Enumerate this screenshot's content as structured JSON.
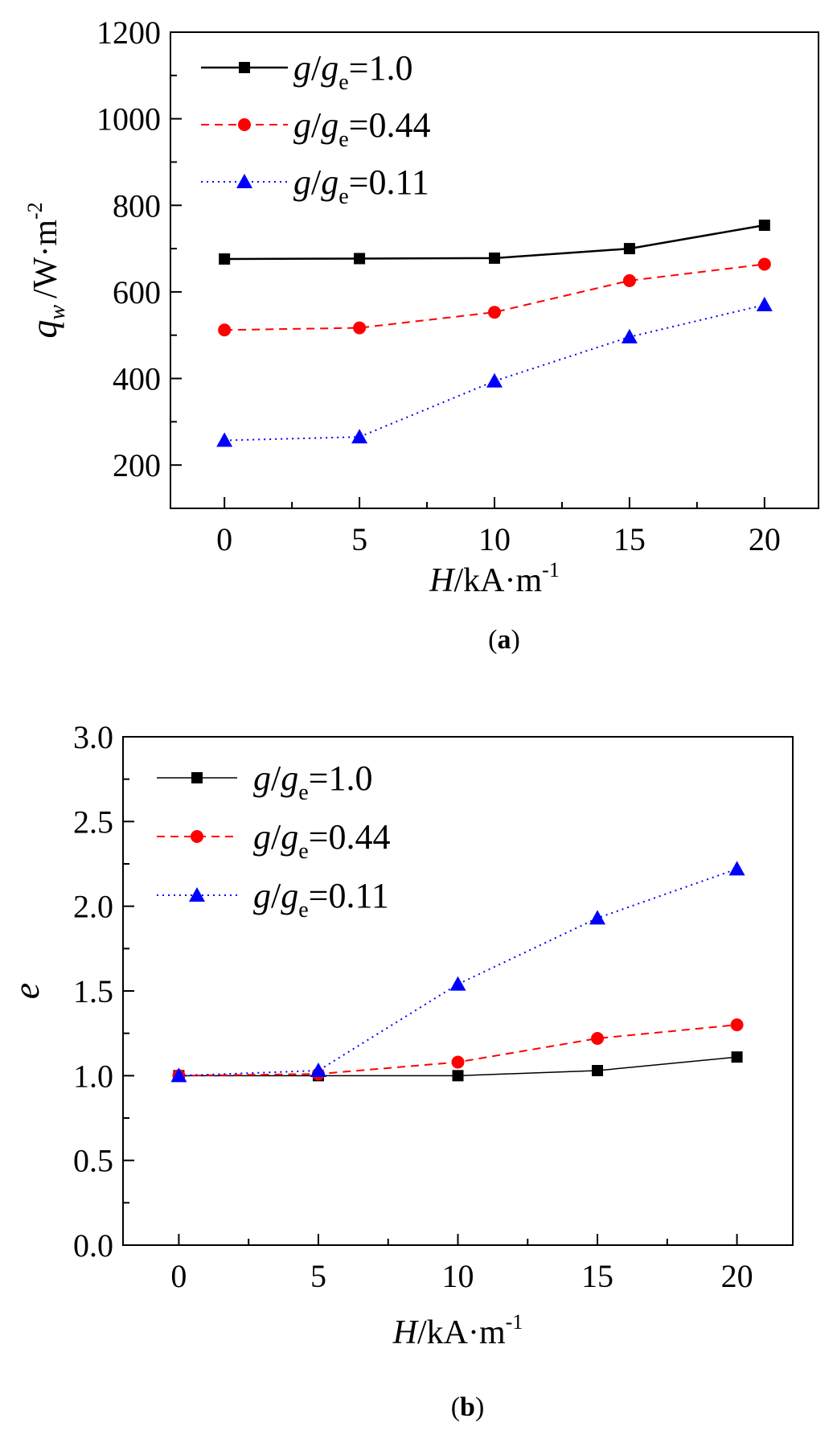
{
  "chart_data": [
    {
      "type": "line",
      "panel": "a",
      "caption_open": "(",
      "caption_letter": "a",
      "caption_close": ")",
      "x": [
        0,
        5,
        10,
        15,
        20
      ],
      "xlim": [
        -2,
        22
      ],
      "xticks": [
        "0",
        "5",
        "10",
        "15",
        "20"
      ],
      "ylim": [
        100,
        1200
      ],
      "yticks": [
        "200",
        "400",
        "600",
        "800",
        "1000",
        "1200"
      ],
      "xlabel": {
        "var": "H",
        "unit": "/kA·m",
        "exp": "-1"
      },
      "ylabel": {
        "var": "q",
        "sub": "w",
        "unit": "/W·m",
        "exp": "-2"
      },
      "series": [
        {
          "name": "g/g_e=1.0",
          "legend": {
            "a": "g",
            "slash": "/",
            "b": "g",
            "sub": "e",
            "val": "=1.0"
          },
          "values": [
            676,
            677,
            678,
            700,
            754
          ],
          "color": "#000000",
          "marker": "square",
          "dash": "solid"
        },
        {
          "name": "g/g_e=0.44",
          "legend": {
            "a": "g",
            "slash": "/",
            "b": "g",
            "sub": "e",
            "val": "=0.44"
          },
          "values": [
            512,
            517,
            553,
            626,
            664
          ],
          "color": "#ff0000",
          "marker": "circle",
          "dash": "dashed"
        },
        {
          "name": "g/g_e=0.11",
          "legend": {
            "a": "g",
            "slash": "/",
            "b": "g",
            "sub": "e",
            "val": "=0.11"
          },
          "values": [
            257,
            265,
            394,
            496,
            570
          ],
          "color": "#0000ff",
          "marker": "triangle",
          "dash": "dotted"
        }
      ]
    },
    {
      "type": "line",
      "panel": "b",
      "caption_open": "(",
      "caption_letter": "b",
      "caption_close": ")",
      "x": [
        0,
        5,
        10,
        15,
        20
      ],
      "xlim": [
        -2,
        22
      ],
      "xticks": [
        "0",
        "5",
        "10",
        "15",
        "20"
      ],
      "ylim": [
        0,
        3
      ],
      "yticks": [
        "0.0",
        "0.5",
        "1.0",
        "1.5",
        "2.0",
        "2.5",
        "3.0"
      ],
      "xlabel": {
        "var": "H",
        "unit": "/kA·m",
        "exp": "-1"
      },
      "ylabel": {
        "var": "e"
      },
      "series": [
        {
          "name": "g/g_e=1.0",
          "legend": {
            "a": "g",
            "slash": "/",
            "b": "g",
            "sub": "e",
            "val": "=1.0"
          },
          "values": [
            1.0,
            1.0,
            1.0,
            1.03,
            1.11
          ],
          "color": "#000000",
          "marker": "square",
          "dash": "solid"
        },
        {
          "name": "g/g_e=0.44",
          "legend": {
            "a": "g",
            "slash": "/",
            "b": "g",
            "sub": "e",
            "val": "=0.44"
          },
          "values": [
            1.0,
            1.01,
            1.08,
            1.22,
            1.3
          ],
          "color": "#ff0000",
          "marker": "circle",
          "dash": "dashed"
        },
        {
          "name": "g/g_e=0.11",
          "legend": {
            "a": "g",
            "slash": "/",
            "b": "g",
            "sub": "e",
            "val": "=0.11"
          },
          "values": [
            1.0,
            1.03,
            1.54,
            1.93,
            2.22
          ],
          "color": "#0000ff",
          "marker": "triangle",
          "dash": "dotted"
        }
      ]
    }
  ]
}
